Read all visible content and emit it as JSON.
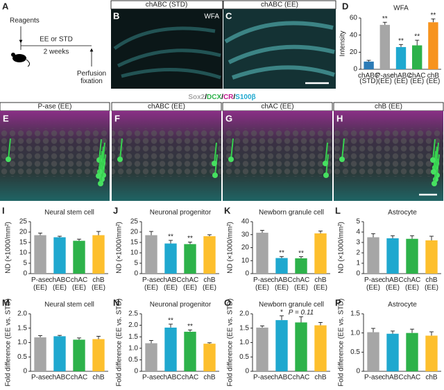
{
  "panels": {
    "a": {
      "letter": "A",
      "reagents": "Reagents",
      "condition": "EE or STD",
      "duration": "2 weeks",
      "endpoint": "Perfusion fixation"
    },
    "wfa_images": [
      {
        "letter": "B",
        "header": "chABC (STD)",
        "stain": "WFA"
      },
      {
        "letter": "C",
        "header": "chABC (EE)"
      }
    ],
    "stain_legend": [
      {
        "text": "Sox2",
        "color": "#a6a6a6"
      },
      {
        "text": "/",
        "color": "#000000"
      },
      {
        "text": "DCX",
        "color": "#2db24a"
      },
      {
        "text": "/",
        "color": "#000000"
      },
      {
        "text": "CR",
        "color": "#c2188f"
      },
      {
        "text": "/",
        "color": "#000000"
      },
      {
        "text": "S100β",
        "color": "#1fa8cf"
      }
    ],
    "images": [
      {
        "letter": "E",
        "header": "P-ase (EE)"
      },
      {
        "letter": "F",
        "header": "chABC (EE)"
      },
      {
        "letter": "G",
        "header": "chAC (EE)"
      },
      {
        "letter": "H",
        "header": "chB (EE)"
      }
    ]
  },
  "chart_data": [
    {
      "type": "bar",
      "letter": "D",
      "title": "WFA",
      "ylabel": "Intensity",
      "categories": [
        "chABC (STD)",
        "P-ase (EE)",
        "chABC (EE)",
        "chAC (EE)",
        "chB (EE)"
      ],
      "values": [
        9,
        52,
        26,
        28,
        55
      ],
      "errors": [
        1.5,
        3,
        3,
        6,
        4
      ],
      "colors": [
        "#2c7bb6",
        "#a6a6a6",
        "#1fa8cf",
        "#2db24a",
        "#f7931e"
      ],
      "labels": [
        null,
        "**",
        "**",
        "**",
        "**"
      ],
      "ylim": [
        0,
        60
      ],
      "yticks": [
        0,
        20,
        40,
        60
      ]
    },
    {
      "type": "bar",
      "letter": "I",
      "title": "Neural stem cell",
      "ylabel": "ND (×1000/mm²)",
      "categories": [
        "P-ase (EE)",
        "chABC (EE)",
        "chAC (EE)",
        "chB (EE)"
      ],
      "values": [
        18.5,
        17.5,
        15.8,
        18.5
      ],
      "errors": [
        1,
        0.5,
        0.8,
        1.8
      ],
      "colors": [
        "#a6a6a6",
        "#1fa8cf",
        "#2db24a",
        "#fdbf2d"
      ],
      "labels": [
        null,
        null,
        null,
        null
      ],
      "ylim": [
        0,
        25
      ],
      "yticks": [
        0,
        5,
        10,
        15,
        20,
        25
      ]
    },
    {
      "type": "bar",
      "letter": "J",
      "title": "Neuronal progenitor",
      "ylabel": "ND (×1000/mm²)",
      "categories": [
        "P-ase (EE)",
        "chABC (EE)",
        "chAC (EE)",
        "chB (EE)"
      ],
      "values": [
        18.5,
        14.5,
        14.2,
        18
      ],
      "errors": [
        1.8,
        1.5,
        1,
        0.7
      ],
      "colors": [
        "#a6a6a6",
        "#1fa8cf",
        "#2db24a",
        "#fdbf2d"
      ],
      "labels": [
        null,
        "**",
        "**",
        null
      ],
      "ylim": [
        0,
        25
      ],
      "yticks": [
        0,
        5,
        10,
        15,
        20,
        25
      ]
    },
    {
      "type": "bar",
      "letter": "K",
      "title": "Newborn granule cell",
      "ylabel": "ND (×1000/mm²)",
      "categories": [
        "P-ase (EE)",
        "chABC (EE)",
        "chAC (EE)",
        "chB (EE)"
      ],
      "values": [
        31.5,
        12,
        11.8,
        31
      ],
      "errors": [
        1.8,
        1.2,
        1.2,
        1.8
      ],
      "colors": [
        "#a6a6a6",
        "#1fa8cf",
        "#2db24a",
        "#fdbf2d"
      ],
      "labels": [
        null,
        "**",
        "**",
        null
      ],
      "ylim": [
        0,
        40
      ],
      "yticks": [
        0,
        10,
        20,
        30,
        40
      ]
    },
    {
      "type": "bar",
      "letter": "L",
      "title": "Astrocyte",
      "ylabel": "ND (×1000/mm²)",
      "categories": [
        "P-ase (EE)",
        "chABC (EE)",
        "chAC (EE)",
        "chB (EE)"
      ],
      "values": [
        3.5,
        3.4,
        3.35,
        3.2
      ],
      "errors": [
        0.35,
        0.25,
        0.3,
        0.4
      ],
      "colors": [
        "#a6a6a6",
        "#1fa8cf",
        "#2db24a",
        "#fdbf2d"
      ],
      "labels": [
        null,
        null,
        null,
        null
      ],
      "ylim": [
        0,
        5
      ],
      "yticks": [
        0,
        1,
        2,
        3,
        4,
        5
      ]
    },
    {
      "type": "bar",
      "letter": "M",
      "title": "Neural stem cell",
      "ylabel": "Fold difference (EE vs. STD)",
      "categories": [
        "P-ase",
        "chABC",
        "chAC",
        "chB"
      ],
      "values": [
        1.18,
        1.22,
        1.1,
        1.12
      ],
      "errors": [
        0.06,
        0.03,
        0.06,
        0.1
      ],
      "colors": [
        "#a6a6a6",
        "#1fa8cf",
        "#2db24a",
        "#fdbf2d"
      ],
      "labels": [
        null,
        null,
        null,
        null
      ],
      "ylim": [
        0,
        2
      ],
      "yticks": [
        0,
        0.5,
        {
          "value": 1,
          "label": "1.0"
        },
        1.5,
        {
          "value": 2,
          "label": "2.0"
        }
      ]
    },
    {
      "type": "bar",
      "letter": "N",
      "title": "Neuronal progenitor",
      "ylabel": "Fold difference (EE vs. STD)",
      "categories": [
        "P-ase",
        "chABC",
        "chAC",
        "chB"
      ],
      "values": [
        1.22,
        1.9,
        1.72,
        1.2
      ],
      "errors": [
        0.12,
        0.15,
        0.08,
        0.04
      ],
      "colors": [
        "#a6a6a6",
        "#1fa8cf",
        "#2db24a",
        "#fdbf2d"
      ],
      "labels": [
        null,
        "**",
        "**",
        null
      ],
      "ylim": [
        0,
        2.5
      ],
      "yticks": [
        0,
        0.5,
        {
          "value": 1,
          "label": "1.0"
        },
        1.5,
        {
          "value": 2,
          "label": "2.0"
        },
        2.5
      ]
    },
    {
      "type": "bar",
      "letter": "O",
      "title": "Newborn granule cell",
      "ylabel": "Fold difference (EE vs. STD)",
      "categories": [
        "P-ase",
        "chABC",
        "chAC",
        "chB"
      ],
      "values": [
        1.52,
        1.78,
        1.7,
        1.6
      ],
      "errors": [
        0.06,
        0.15,
        0.2,
        0.1
      ],
      "colors": [
        "#a6a6a6",
        "#1fa8cf",
        "#2db24a",
        "#fdbf2d"
      ],
      "labels": [
        null,
        "*",
        "P = 0.11",
        null
      ],
      "ylim": [
        0,
        2
      ],
      "yticks": [
        0,
        0.5,
        {
          "value": 1,
          "label": "1.0"
        },
        1.5,
        {
          "value": 2,
          "label": "2.0"
        }
      ]
    },
    {
      "type": "bar",
      "letter": "P",
      "title": "Astrocyte",
      "ylabel": "Fold difference (EE vs. STD)",
      "categories": [
        "P-ase",
        "chABC",
        "chAC",
        "chB"
      ],
      "values": [
        1.02,
        0.98,
        1.0,
        0.93
      ],
      "errors": [
        0.1,
        0.07,
        0.1,
        0.1
      ],
      "colors": [
        "#a6a6a6",
        "#1fa8cf",
        "#2db24a",
        "#fdbf2d"
      ],
      "labels": [
        null,
        null,
        null,
        null
      ],
      "ylim": [
        0,
        1.5
      ],
      "yticks": [
        0,
        0.5,
        {
          "value": 1,
          "label": "1.0"
        },
        1.5
      ]
    }
  ]
}
